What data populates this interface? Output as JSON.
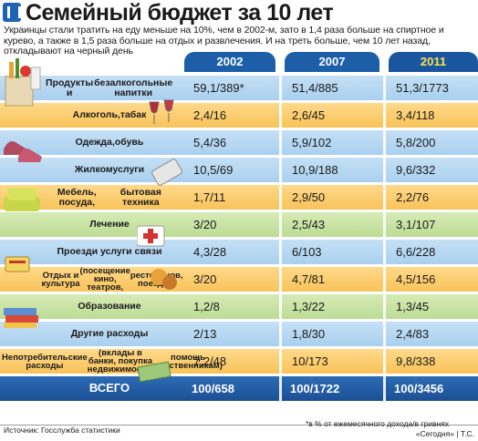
{
  "title": "Семейный бюджет за 10 лет",
  "subtitle": "Украинцы стали тратить на еду меньше на 10%, чем в 2002-м, зато в 1,4 раза больше на спиртное и курево, а также в 1,5 раза больше на отдых и развлечения. И на треть больше, чем 10 лет назад, откладывают на черный день",
  "footer": {
    "source": "Источник: Госслужба статистики",
    "note": "*в % от ежемесячного дохода/в гривнях",
    "credit": "«Сегодня» | Т.С."
  },
  "colors": {
    "blue_row": "#b7d8f2",
    "orange_row": "#fbcd6e",
    "green_row": "#c8e3a4",
    "header": "#1c5fa8",
    "highlight_2011": "#ffe34f"
  },
  "chart_data": {
    "type": "table",
    "columns": [
      "2002",
      "2007",
      "2011"
    ],
    "rows": [
      {
        "category": "Продукты и безалкогольные напитки",
        "values": [
          "59,1/389*",
          "51,4/885",
          "51,3/1773"
        ],
        "icon": "grocery-bag-icon"
      },
      {
        "category": "Алкоголь, табак",
        "values": [
          "2,4/16",
          "2,6/45",
          "3,4/118"
        ],
        "icon": "wine-glasses-icon"
      },
      {
        "category": "Одежда, обувь",
        "values": [
          "5,4/36",
          "5,9/102",
          "5,8/200"
        ],
        "icon": "shoes-icon"
      },
      {
        "category": "Жилкомуслуги",
        "values": [
          "10,5/69",
          "10,9/188",
          "9,6/332"
        ],
        "icon": "radiator-icon"
      },
      {
        "category": "Мебель, посуда, бытовая техника",
        "values": [
          "1,7/11",
          "2,9/50",
          "2,2/76"
        ],
        "icon": "armchair-icon"
      },
      {
        "category": "Лечение",
        "values": [
          "3/20",
          "2,5/43",
          "3,1/107"
        ],
        "icon": "first-aid-kit-icon"
      },
      {
        "category": "Проезд и услуги связи",
        "values": [
          "4,3/28",
          "6/103",
          "6,6/228"
        ],
        "icon": "phone-ticket-icon"
      },
      {
        "category": "Отдых и культура (посещение кино, театров, ресторанов, поездки)",
        "values": [
          "3/20",
          "4,7/81",
          "4,5/156"
        ],
        "icon": "theater-masks-icon"
      },
      {
        "category": "Образование",
        "values": [
          "1,2/8",
          "1,3/22",
          "1,3/45"
        ],
        "icon": "books-icon"
      },
      {
        "category": "Другие расходы",
        "values": [
          "2/13",
          "1,8/30",
          "2,4/83"
        ],
        "icon": "none"
      },
      {
        "category": "Непотребительские расходы (вклады в банки, покупка недвижимости, помощь родственникам)",
        "values": [
          "7,2/48",
          "10/173",
          "9,8/338"
        ],
        "icon": "money-icon"
      }
    ],
    "total": {
      "category": "ВСЕГО",
      "values": [
        "100/658",
        "100/1722",
        "100/3456"
      ]
    }
  },
  "row_labels": [
    [
      "Продукты и",
      "безалкогольные напитки"
    ],
    [
      "Алкоголь,",
      "табак"
    ],
    [
      "Одежда,",
      "обувь"
    ],
    [
      "Жилкомуслуги"
    ],
    [
      "Мебель, посуда,",
      "бытовая техника"
    ],
    [
      "Лечение"
    ],
    [
      "Проезд",
      "и услуги связи"
    ],
    [
      "Отдых и культура",
      "(посещение кино, театров,",
      "ресторанов, поездки)"
    ],
    [
      "Образование"
    ],
    [
      "Другие расходы"
    ],
    [
      "Непотребительские расходы",
      "(вклады в банки, покупка недвижимости,",
      "помощь родственникам)"
    ]
  ]
}
